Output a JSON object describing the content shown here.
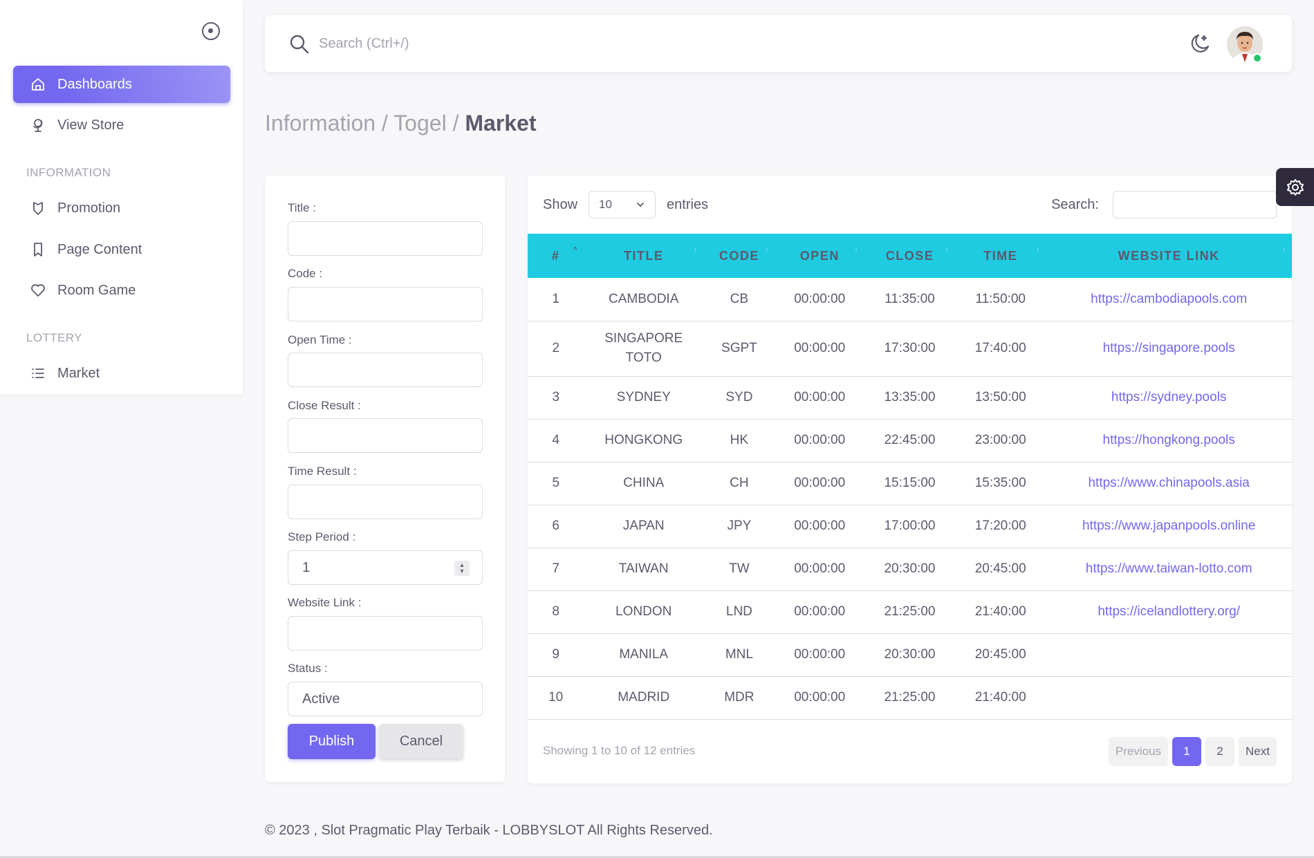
{
  "sidebar": {
    "items": [
      {
        "label": "Dashboards",
        "icon": "home-icon",
        "active": true
      },
      {
        "label": "View Store",
        "icon": "globe-stand-icon"
      },
      {
        "label": "Promotion",
        "icon": "shield-icon"
      },
      {
        "label": "Page Content",
        "icon": "bookmark-icon"
      },
      {
        "label": "Room Game",
        "icon": "heart-icon"
      },
      {
        "label": "Market",
        "icon": "list-icon"
      }
    ],
    "headers": [
      "INFORMATION",
      "LOTTERY"
    ]
  },
  "topbar": {
    "search_placeholder": "Search (Ctrl+/)"
  },
  "breadcrumb": {
    "part1": "Information / Togel / ",
    "current": "Market"
  },
  "form": {
    "labels": [
      "Title :",
      "Code :",
      "Open Time :",
      "Close Result :",
      "Time Result :",
      "Step Period :",
      "Website Link :",
      "Status :"
    ],
    "step_period_value": "1",
    "status_value": "Active",
    "publish_label": "Publish",
    "cancel_label": "Cancel"
  },
  "table": {
    "show_label": "Show",
    "entries_label": "entries",
    "page_length": "10",
    "search_label": "Search:",
    "columns": [
      "#",
      "TITLE",
      "CODE",
      "OPEN",
      "CLOSE",
      "TIME",
      "WEBSITE LINK"
    ],
    "rows": [
      [
        "1",
        "CAMBODIA",
        "CB",
        "00:00:00",
        "11:35:00",
        "11:50:00",
        "https://cambodiapools.com"
      ],
      [
        "2",
        "SINGAPORE TOTO",
        "SGPT",
        "00:00:00",
        "17:30:00",
        "17:40:00",
        "https://singapore.pools"
      ],
      [
        "3",
        "SYDNEY",
        "SYD",
        "00:00:00",
        "13:35:00",
        "13:50:00",
        "https://sydney.pools"
      ],
      [
        "4",
        "HONGKONG",
        "HK",
        "00:00:00",
        "22:45:00",
        "23:00:00",
        "https://hongkong.pools"
      ],
      [
        "5",
        "CHINA",
        "CH",
        "00:00:00",
        "15:15:00",
        "15:35:00",
        "https://www.chinapools.asia"
      ],
      [
        "6",
        "JAPAN",
        "JPY",
        "00:00:00",
        "17:00:00",
        "17:20:00",
        "https://www.japanpools.online"
      ],
      [
        "7",
        "TAIWAN",
        "TW",
        "00:00:00",
        "20:30:00",
        "20:45:00",
        "https://www.taiwan-lotto.com"
      ],
      [
        "8",
        "LONDON",
        "LND",
        "00:00:00",
        "21:25:00",
        "21:40:00",
        "https://icelandlottery.org/"
      ],
      [
        "9",
        "MANILA",
        "MNL",
        "00:00:00",
        "20:30:00",
        "20:45:00",
        ""
      ],
      [
        "10",
        "MADRID",
        "MDR",
        "00:00:00",
        "21:25:00",
        "21:40:00",
        ""
      ]
    ],
    "info": "Showing 1 to 10 of 12 entries",
    "pagination": {
      "previous": "Previous",
      "pages": [
        "1",
        "2"
      ],
      "next": "Next"
    }
  },
  "footer": "© 2023 , Slot Pragmatic Play Terbaik - LOBBYSLOT All Rights Reserved.",
  "colors": {
    "primary": "#7367f0",
    "table_header": "#1ecbe1",
    "online": "#28c76f"
  }
}
